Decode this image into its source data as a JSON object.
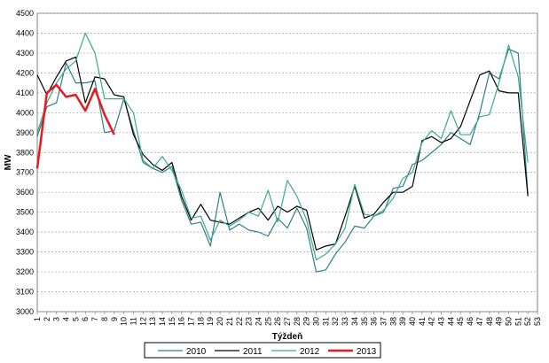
{
  "chart_data": {
    "type": "line",
    "xlabel": "Týždeň",
    "ylabel": "MW",
    "ylim": [
      3000,
      4500
    ],
    "yticks": [
      3000,
      3100,
      3200,
      3300,
      3400,
      3500,
      3600,
      3700,
      3800,
      3900,
      4000,
      4100,
      4200,
      4300,
      4400,
      4500
    ],
    "x": [
      1,
      2,
      3,
      4,
      5,
      6,
      7,
      8,
      9,
      10,
      11,
      12,
      13,
      14,
      15,
      16,
      17,
      18,
      19,
      20,
      21,
      22,
      23,
      24,
      25,
      26,
      27,
      28,
      29,
      30,
      31,
      32,
      33,
      34,
      35,
      36,
      37,
      38,
      39,
      40,
      41,
      42,
      43,
      44,
      45,
      46,
      47,
      48,
      49,
      50,
      51,
      52,
      53
    ],
    "grid": true,
    "legend_position": "bottom",
    "series": [
      {
        "name": "2010",
        "color": "#2e7d8c",
        "values": [
          3880,
          4030,
          4050,
          4250,
          4150,
          4150,
          4160,
          3900,
          3910,
          4070,
          3910,
          3750,
          3720,
          3700,
          3730,
          3560,
          3440,
          3450,
          3330,
          3600,
          3410,
          3440,
          3410,
          3400,
          3380,
          3470,
          3420,
          3520,
          3420,
          3200,
          3210,
          3290,
          3350,
          3430,
          3420,
          3480,
          3500,
          3620,
          3630,
          3740,
          3760,
          3800,
          3840,
          3900,
          3870,
          3840,
          4000,
          4200,
          4170,
          4320,
          4300,
          3590,
          null
        ]
      },
      {
        "name": "2011",
        "color": "#000000",
        "values": [
          4190,
          4090,
          4180,
          4260,
          4280,
          4050,
          4180,
          4170,
          4090,
          4080,
          3890,
          3790,
          3740,
          3710,
          3750,
          3580,
          3460,
          3540,
          3460,
          3450,
          3440,
          3470,
          3500,
          3520,
          3460,
          3530,
          3500,
          3530,
          3510,
          3310,
          3330,
          3340,
          3480,
          3630,
          3470,
          3490,
          3550,
          3600,
          3600,
          3630,
          3860,
          3880,
          3850,
          3870,
          3930,
          4060,
          4190,
          4210,
          4110,
          4100,
          4100,
          3580,
          null
        ]
      },
      {
        "name": "2012",
        "color": "#3aaa8a",
        "values": [
          3900,
          4050,
          4150,
          4220,
          4260,
          4400,
          4300,
          4070,
          4070,
          4070,
          4000,
          3760,
          3720,
          3780,
          3710,
          3610,
          3470,
          3480,
          3360,
          3460,
          3430,
          3460,
          3500,
          3480,
          3610,
          3450,
          3660,
          3580,
          3460,
          3260,
          3290,
          3340,
          3420,
          3640,
          3490,
          3480,
          3510,
          3570,
          3670,
          3700,
          3850,
          3910,
          3870,
          4010,
          3890,
          3890,
          3980,
          3990,
          4150,
          4340,
          4180,
          3750,
          null
        ]
      },
      {
        "name": "2013",
        "color": "#e8191f",
        "values": [
          3720,
          4100,
          4140,
          4080,
          4090,
          4010,
          4120,
          3990,
          3890,
          null,
          null,
          null,
          null,
          null,
          null,
          null,
          null,
          null,
          null,
          null,
          null,
          null,
          null,
          null,
          null,
          null,
          null,
          null,
          null,
          null,
          null,
          null,
          null,
          null,
          null,
          null,
          null,
          null,
          null,
          null,
          null,
          null,
          null,
          null,
          null,
          null,
          null,
          null,
          null,
          null,
          null,
          null,
          null
        ]
      }
    ]
  }
}
